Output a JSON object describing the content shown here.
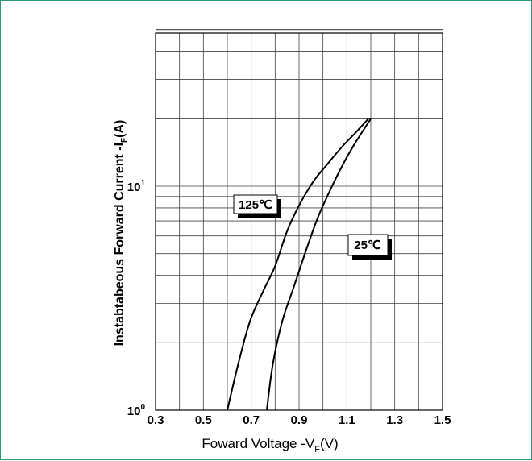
{
  "chart_data": {
    "type": "line",
    "xlabel": "Foward Voltage -V",
    "xlabel_sub": "F",
    "xlabel_unit": "(V)",
    "ylabel": "Instabtabeous Forward Current -I",
    "ylabel_sub": "F",
    "ylabel_unit": "(A)",
    "xlim": [
      0.3,
      1.5
    ],
    "ylim": [
      1,
      50
    ],
    "yscale": "log",
    "grid": true,
    "x_ticks": [
      "0.3",
      "0.5",
      "0.7",
      "0.9",
      "1.1",
      "1.3",
      "1.5"
    ],
    "y_ticks": [
      {
        "base": "10",
        "exp": "0",
        "value": 1
      },
      {
        "base": "10",
        "exp": "1",
        "value": 10
      }
    ],
    "series": [
      {
        "name": "125℃",
        "x": [
          0.6,
          0.645,
          0.695,
          0.75,
          0.8,
          0.85,
          0.9,
          0.96,
          1.02,
          1.08,
          1.14,
          1.19
        ],
        "y": [
          1.0,
          1.6,
          2.5,
          3.4,
          4.4,
          6.3,
          8.2,
          10.5,
          12.6,
          15.0,
          17.5,
          20.0
        ]
      },
      {
        "name": "25℃",
        "x": [
          0.765,
          0.79,
          0.83,
          0.88,
          0.93,
          0.98,
          1.03,
          1.08,
          1.13,
          1.2
        ],
        "y": [
          1.0,
          1.6,
          2.5,
          3.6,
          5.2,
          7.3,
          9.6,
          12.3,
          15.3,
          20.0
        ]
      }
    ]
  }
}
